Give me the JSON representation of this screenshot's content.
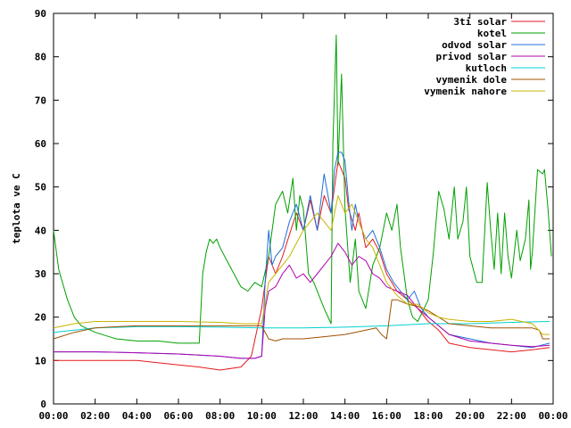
{
  "chart_data": {
    "type": "line",
    "title": "",
    "xlabel": "",
    "ylabel": "teplota ve C",
    "ylim": [
      0,
      90
    ],
    "xlim": [
      "00:00",
      "24:00"
    ],
    "grid": false,
    "legend_position": "top-right",
    "x_ticks": [
      "00:00",
      "02:00",
      "04:00",
      "06:00",
      "08:00",
      "10:00",
      "12:00",
      "14:00",
      "16:00",
      "18:00",
      "20:00",
      "22:00",
      "00:00"
    ],
    "y_ticks": [
      0,
      10,
      20,
      30,
      40,
      50,
      60,
      70,
      80,
      90
    ],
    "series": [
      {
        "name": "3ti solar",
        "color": "#e41a1c",
        "points": [
          [
            "00:00",
            10
          ],
          [
            "02:00",
            10
          ],
          [
            "04:00",
            10
          ],
          [
            "06:00",
            9
          ],
          [
            "07:00",
            8.5
          ],
          [
            "08:00",
            7.8
          ],
          [
            "09:00",
            8.5
          ],
          [
            "09:30",
            11
          ],
          [
            "10:00",
            22
          ],
          [
            "10:20",
            34
          ],
          [
            "10:40",
            30
          ],
          [
            "11:00",
            34
          ],
          [
            "11:20",
            39
          ],
          [
            "11:40",
            44
          ],
          [
            "12:00",
            40
          ],
          [
            "12:20",
            47
          ],
          [
            "12:40",
            40
          ],
          [
            "13:00",
            48
          ],
          [
            "13:20",
            44
          ],
          [
            "13:30",
            50
          ],
          [
            "13:40",
            56
          ],
          [
            "14:00",
            52
          ],
          [
            "14:10",
            45
          ],
          [
            "14:30",
            40
          ],
          [
            "14:40",
            44
          ],
          [
            "15:00",
            36
          ],
          [
            "15:20",
            38
          ],
          [
            "15:40",
            35
          ],
          [
            "16:00",
            30
          ],
          [
            "16:30",
            26
          ],
          [
            "17:00",
            24
          ],
          [
            "17:30",
            22
          ],
          [
            "18:00",
            19
          ],
          [
            "18:30",
            17
          ],
          [
            "19:00",
            14
          ],
          [
            "20:00",
            13
          ],
          [
            "22:00",
            12
          ],
          [
            "23:00",
            12.5
          ],
          [
            "23:50",
            13
          ]
        ]
      },
      {
        "name": "kotel",
        "color": "#00a000",
        "points": [
          [
            "00:00",
            40
          ],
          [
            "00:15",
            31
          ],
          [
            "00:40",
            24
          ],
          [
            "01:00",
            20
          ],
          [
            "01:20",
            18
          ],
          [
            "02:00",
            16.5
          ],
          [
            "03:00",
            15
          ],
          [
            "04:00",
            14.5
          ],
          [
            "05:00",
            14.5
          ],
          [
            "06:00",
            14
          ],
          [
            "07:00",
            14
          ],
          [
            "07:10",
            30
          ],
          [
            "07:20",
            35
          ],
          [
            "07:30",
            38
          ],
          [
            "07:40",
            37
          ],
          [
            "07:50",
            38
          ],
          [
            "08:00",
            36
          ],
          [
            "08:20",
            33
          ],
          [
            "08:40",
            30
          ],
          [
            "09:00",
            27
          ],
          [
            "09:20",
            26
          ],
          [
            "09:40",
            28
          ],
          [
            "10:00",
            27
          ],
          [
            "10:20",
            34
          ],
          [
            "10:40",
            46
          ],
          [
            "11:00",
            49
          ],
          [
            "11:15",
            44
          ],
          [
            "11:30",
            52
          ],
          [
            "11:40",
            40
          ],
          [
            "11:50",
            48
          ],
          [
            "12:00",
            45
          ],
          [
            "12:15",
            30
          ],
          [
            "12:30",
            28
          ],
          [
            "12:45",
            25
          ],
          [
            "13:00",
            22
          ],
          [
            "13:20",
            18.5
          ],
          [
            "13:25",
            60
          ],
          [
            "13:35",
            85
          ],
          [
            "13:40",
            55
          ],
          [
            "13:50",
            76
          ],
          [
            "14:00",
            45
          ],
          [
            "14:15",
            28
          ],
          [
            "14:30",
            38
          ],
          [
            "14:40",
            26
          ],
          [
            "15:00",
            22
          ],
          [
            "15:20",
            32
          ],
          [
            "15:40",
            36
          ],
          [
            "16:00",
            44
          ],
          [
            "16:15",
            40
          ],
          [
            "16:30",
            46
          ],
          [
            "16:40",
            36
          ],
          [
            "17:00",
            24
          ],
          [
            "17:15",
            20
          ],
          [
            "17:30",
            19
          ],
          [
            "18:00",
            24
          ],
          [
            "18:15",
            35
          ],
          [
            "18:30",
            49
          ],
          [
            "18:45",
            45
          ],
          [
            "19:00",
            38
          ],
          [
            "19:15",
            50
          ],
          [
            "19:25",
            38
          ],
          [
            "19:40",
            42
          ],
          [
            "19:50",
            50
          ],
          [
            "20:00",
            34
          ],
          [
            "20:20",
            28
          ],
          [
            "20:35",
            28
          ],
          [
            "20:50",
            51
          ],
          [
            "21:00",
            40
          ],
          [
            "21:10",
            31
          ],
          [
            "21:20",
            44
          ],
          [
            "21:30",
            30
          ],
          [
            "21:40",
            44
          ],
          [
            "21:50",
            34
          ],
          [
            "22:00",
            29
          ],
          [
            "22:15",
            40
          ],
          [
            "22:25",
            33
          ],
          [
            "22:40",
            38
          ],
          [
            "22:50",
            47
          ],
          [
            "22:55",
            31
          ],
          [
            "23:00",
            35
          ],
          [
            "23:15",
            54
          ],
          [
            "23:30",
            53
          ],
          [
            "23:35",
            54
          ],
          [
            "23:45",
            45
          ],
          [
            "23:55",
            34
          ]
        ]
      },
      {
        "name": "odvod solar",
        "color": "#1e6fd9",
        "points": [
          [
            "00:00",
            12
          ],
          [
            "02:00",
            12
          ],
          [
            "04:00",
            11.8
          ],
          [
            "06:00",
            11.5
          ],
          [
            "08:00",
            11
          ],
          [
            "09:00",
            10.5
          ],
          [
            "09:40",
            10.5
          ],
          [
            "10:00",
            11
          ],
          [
            "10:10",
            28
          ],
          [
            "10:20",
            40
          ],
          [
            "10:30",
            32
          ],
          [
            "10:40",
            34
          ],
          [
            "11:00",
            36
          ],
          [
            "11:20",
            42
          ],
          [
            "11:40",
            46
          ],
          [
            "12:00",
            40
          ],
          [
            "12:20",
            48
          ],
          [
            "12:40",
            40
          ],
          [
            "13:00",
            53
          ],
          [
            "13:20",
            44
          ],
          [
            "13:30",
            54
          ],
          [
            "13:40",
            58
          ],
          [
            "13:50",
            58
          ],
          [
            "14:00",
            56
          ],
          [
            "14:10",
            47
          ],
          [
            "14:20",
            40
          ],
          [
            "14:30",
            46
          ],
          [
            "14:40",
            42
          ],
          [
            "15:00",
            38
          ],
          [
            "15:20",
            40
          ],
          [
            "15:40",
            36
          ],
          [
            "16:00",
            31
          ],
          [
            "16:20",
            28
          ],
          [
            "16:40",
            26
          ],
          [
            "17:00",
            24
          ],
          [
            "17:20",
            26
          ],
          [
            "17:40",
            22
          ],
          [
            "18:00",
            20
          ],
          [
            "18:30",
            18
          ],
          [
            "19:00",
            16
          ],
          [
            "20:00",
            15
          ],
          [
            "21:00",
            14
          ],
          [
            "22:00",
            13.5
          ],
          [
            "23:00",
            13
          ],
          [
            "23:50",
            14
          ]
        ]
      },
      {
        "name": "privod solar",
        "color": "#b000b0",
        "points": [
          [
            "00:00",
            12
          ],
          [
            "02:00",
            12
          ],
          [
            "04:00",
            11.8
          ],
          [
            "06:00",
            11.5
          ],
          [
            "08:00",
            11
          ],
          [
            "09:00",
            10.5
          ],
          [
            "09:40",
            10.5
          ],
          [
            "10:00",
            11
          ],
          [
            "10:10",
            22
          ],
          [
            "10:20",
            26
          ],
          [
            "10:40",
            27
          ],
          [
            "11:00",
            30
          ],
          [
            "11:20",
            32
          ],
          [
            "11:40",
            29
          ],
          [
            "12:00",
            30
          ],
          [
            "12:20",
            28
          ],
          [
            "12:40",
            30
          ],
          [
            "13:00",
            32
          ],
          [
            "13:20",
            34
          ],
          [
            "13:40",
            37
          ],
          [
            "14:00",
            35
          ],
          [
            "14:20",
            32
          ],
          [
            "14:40",
            34
          ],
          [
            "15:00",
            33
          ],
          [
            "15:20",
            30
          ],
          [
            "15:40",
            29
          ],
          [
            "16:00",
            27
          ],
          [
            "16:30",
            26
          ],
          [
            "17:00",
            25
          ],
          [
            "17:30",
            22
          ],
          [
            "18:00",
            20
          ],
          [
            "18:30",
            18
          ],
          [
            "19:00",
            16
          ],
          [
            "20:00",
            14.5
          ],
          [
            "21:00",
            14
          ],
          [
            "22:00",
            13.5
          ],
          [
            "23:00",
            13.2
          ],
          [
            "23:50",
            13.5
          ]
        ]
      },
      {
        "name": "kutloch",
        "color": "#00d0d0",
        "points": [
          [
            "00:00",
            16.5
          ],
          [
            "02:00",
            17.5
          ],
          [
            "04:00",
            17.8
          ],
          [
            "06:00",
            17.8
          ],
          [
            "08:00",
            17.7
          ],
          [
            "10:00",
            17.5
          ],
          [
            "12:00",
            17.5
          ],
          [
            "14:00",
            17.7
          ],
          [
            "16:00",
            18
          ],
          [
            "18:00",
            18.5
          ],
          [
            "20:00",
            18.5
          ],
          [
            "22:00",
            18.8
          ],
          [
            "23:50",
            19
          ]
        ]
      },
      {
        "name": "vymenik dole",
        "color": "#a05000",
        "points": [
          [
            "00:00",
            15
          ],
          [
            "01:00",
            16.5
          ],
          [
            "02:00",
            17.5
          ],
          [
            "03:00",
            17.8
          ],
          [
            "04:00",
            18
          ],
          [
            "06:00",
            18
          ],
          [
            "08:00",
            18
          ],
          [
            "09:00",
            18
          ],
          [
            "10:00",
            18
          ],
          [
            "10:20",
            15
          ],
          [
            "10:40",
            14.5
          ],
          [
            "11:00",
            15
          ],
          [
            "12:00",
            15
          ],
          [
            "13:00",
            15.5
          ],
          [
            "14:00",
            16
          ],
          [
            "14:30",
            16.5
          ],
          [
            "15:00",
            17
          ],
          [
            "15:30",
            17.5
          ],
          [
            "15:45",
            16
          ],
          [
            "16:00",
            15
          ],
          [
            "16:15",
            24
          ],
          [
            "16:30",
            24
          ],
          [
            "17:00",
            23
          ],
          [
            "17:30",
            22.5
          ],
          [
            "18:00",
            21.5
          ],
          [
            "18:30",
            20
          ],
          [
            "19:00",
            18.5
          ],
          [
            "20:00",
            18
          ],
          [
            "21:00",
            17.5
          ],
          [
            "22:00",
            17.5
          ],
          [
            "23:00",
            17.5
          ],
          [
            "23:20",
            17
          ],
          [
            "23:30",
            15
          ],
          [
            "23:50",
            15
          ]
        ]
      },
      {
        "name": "vymenik nahore",
        "color": "#c8b400",
        "points": [
          [
            "00:00",
            17.5
          ],
          [
            "01:00",
            18.5
          ],
          [
            "02:00",
            19
          ],
          [
            "04:00",
            19
          ],
          [
            "06:00",
            19
          ],
          [
            "08:00",
            18.8
          ],
          [
            "09:00",
            18.5
          ],
          [
            "10:00",
            18.5
          ],
          [
            "10:20",
            28
          ],
          [
            "10:40",
            30
          ],
          [
            "11:00",
            32
          ],
          [
            "11:20",
            34
          ],
          [
            "11:40",
            37
          ],
          [
            "12:00",
            40
          ],
          [
            "12:20",
            42
          ],
          [
            "12:40",
            44
          ],
          [
            "13:00",
            42
          ],
          [
            "13:20",
            40
          ],
          [
            "13:40",
            48
          ],
          [
            "14:00",
            44
          ],
          [
            "14:20",
            46
          ],
          [
            "14:40",
            42
          ],
          [
            "15:00",
            38
          ],
          [
            "15:20",
            36
          ],
          [
            "15:40",
            32
          ],
          [
            "16:00",
            28
          ],
          [
            "16:30",
            25
          ],
          [
            "17:00",
            23
          ],
          [
            "17:30",
            23
          ],
          [
            "18:00",
            21
          ],
          [
            "18:30",
            20
          ],
          [
            "19:00",
            19.5
          ],
          [
            "20:00",
            19
          ],
          [
            "21:00",
            19
          ],
          [
            "22:00",
            19.5
          ],
          [
            "23:00",
            18.5
          ],
          [
            "23:30",
            16
          ],
          [
            "23:50",
            16
          ]
        ]
      }
    ]
  }
}
